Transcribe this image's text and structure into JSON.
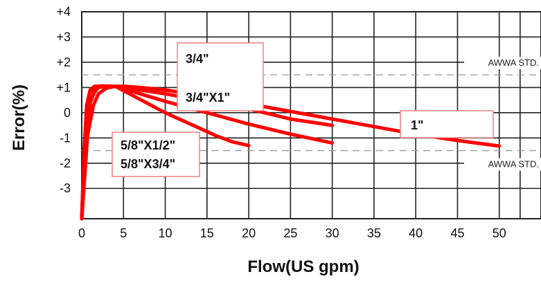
{
  "chart_data": {
    "type": "line",
    "title": "",
    "xlabel": "Flow(US gpm)",
    "ylabel": "Error(%)",
    "xlim": [
      0,
      55
    ],
    "ylim": [
      -4.2,
      4
    ],
    "x_ticks": [
      0,
      5,
      10,
      15,
      20,
      25,
      30,
      35,
      40,
      45,
      50
    ],
    "x_tick_labels": [
      "0",
      "5",
      "10",
      "15",
      "20",
      "25",
      "30",
      "35",
      "40",
      "45",
      "50"
    ],
    "y_ticks": [
      4,
      3,
      2,
      1,
      0,
      -1,
      -2,
      -3
    ],
    "y_tick_labels": [
      "+4",
      "+3",
      "+2",
      "+1",
      "0",
      "-1",
      "-2",
      "-3"
    ],
    "grid": true,
    "series_color": "#ff0000",
    "reference_lines": [
      {
        "label": "AWWA STD.",
        "y": 1.5
      },
      {
        "label": "AWWA STD.",
        "y": -1.5
      }
    ],
    "series": [
      {
        "x": [
          0,
          0.3,
          0.6,
          1.0,
          1.5,
          2.5,
          4,
          6,
          8,
          10,
          12,
          14,
          16,
          18,
          20
        ],
        "y": [
          -4.2,
          -1.5,
          0.3,
          0.9,
          1.04,
          1.06,
          1.05,
          0.7,
          0.35,
          0,
          -0.3,
          -0.6,
          -0.9,
          -1.15,
          -1.3
        ]
      },
      {
        "x": [
          0,
          0.3,
          0.6,
          1.0,
          1.6,
          2.5,
          4,
          6,
          8,
          10,
          15,
          20,
          25,
          30
        ],
        "y": [
          -4.2,
          -1.4,
          0.3,
          0.8,
          1.02,
          1.06,
          1.05,
          0.85,
          0.65,
          0.45,
          0,
          -0.45,
          -0.85,
          -1.2
        ]
      },
      {
        "x": [
          0,
          0.5,
          1.0,
          1.5,
          2.0,
          3,
          4,
          6,
          10,
          15,
          20,
          25,
          30
        ],
        "y": [
          -4.2,
          -0.9,
          0.4,
          0.8,
          1.0,
          1.05,
          1.05,
          0.95,
          0.75,
          0.45,
          0.15,
          -0.25,
          -0.5
        ]
      },
      {
        "x": [
          0,
          0.7,
          1.4,
          2.0,
          3.0,
          4.0,
          5.0,
          7,
          10,
          15,
          20,
          25,
          30,
          35,
          40,
          45,
          50
        ],
        "y": [
          -4.2,
          -0.9,
          0.3,
          0.75,
          0.98,
          1.04,
          1.05,
          1.0,
          0.9,
          0.65,
          0.35,
          0.05,
          -0.25,
          -0.55,
          -0.85,
          -1.1,
          -1.32
        ]
      }
    ],
    "series_labels": [
      {
        "lines": [
          "3/4\""
        ]
      },
      {
        "lines": [
          "3/4\"X1\""
        ]
      },
      {
        "lines": [
          "1\""
        ]
      },
      {
        "lines": [
          "5/8\"X1/2\"",
          "5/8\"X3/4\""
        ]
      }
    ]
  }
}
